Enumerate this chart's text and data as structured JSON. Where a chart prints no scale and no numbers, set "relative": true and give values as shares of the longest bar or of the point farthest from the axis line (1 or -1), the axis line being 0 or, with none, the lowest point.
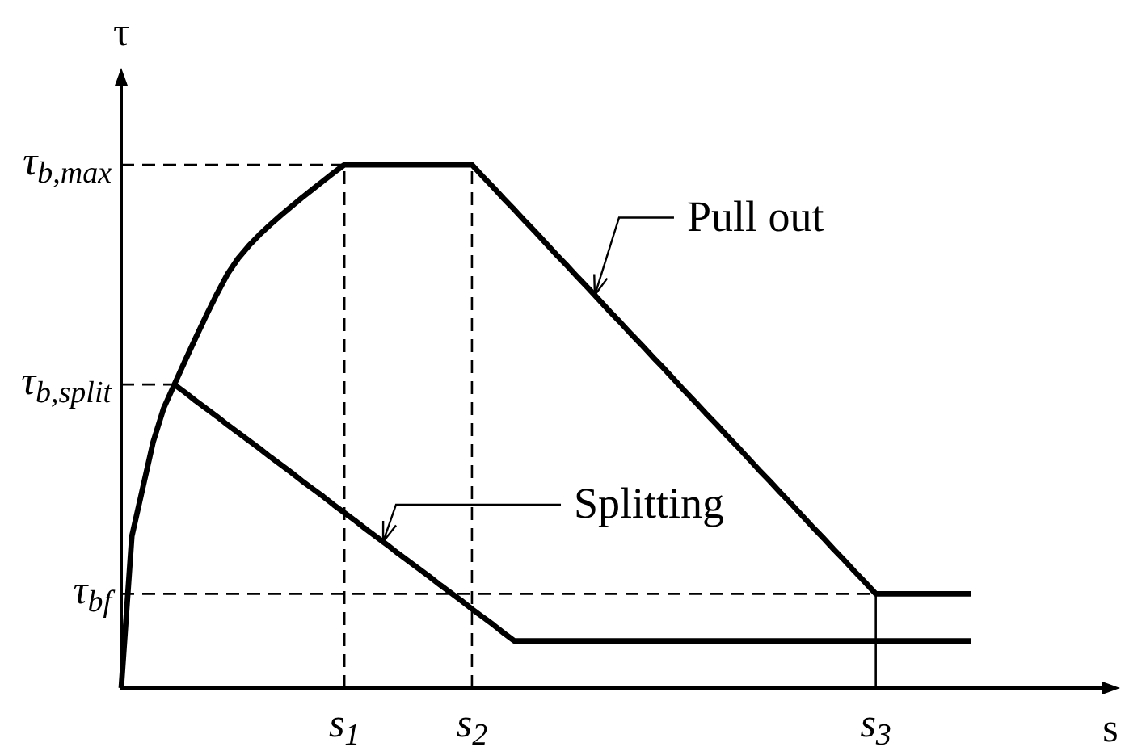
{
  "chart_data": {
    "type": "line",
    "relative": true,
    "xlabel": "s",
    "ylabel": "τ",
    "line_style": "solid",
    "categories": [
      null,
      null,
      null,
      null,
      null,
      null,
      null,
      null,
      null,
      null,
      null,
      null,
      null,
      null,
      null,
      null,
      null,
      null,
      null,
      null,
      null,
      "s$_{1}$",
      null,
      null,
      null,
      null,
      null,
      null,
      null,
      null,
      null,
      null,
      null,
      "s$_{2}$",
      null,
      null,
      null,
      null,
      null,
      null,
      null,
      null,
      null,
      null,
      null,
      null,
      null,
      null,
      null,
      null,
      null,
      null,
      null,
      null,
      null,
      null,
      null,
      null,
      null,
      null,
      null,
      null,
      null,
      null,
      null,
      null,
      null,
      null,
      null,
      null,
      null,
      "s$_{3}$",
      null,
      null,
      null,
      null,
      null,
      null,
      null,
      null,
      null
    ],
    "series": [
      {
        "name": "Pull out",
        "color": "#000000",
        "values": [
          0,
          0.29,
          0.38,
          0.47,
          0.535,
          0.58,
          0.625,
          0.669,
          0.712,
          0.753,
          0.791,
          0.821,
          0.845,
          0.866,
          0.885,
          0.903,
          0.92,
          0.937,
          0.953,
          0.969,
          0.985,
          1,
          1,
          1,
          1,
          1,
          1,
          1,
          1,
          1,
          1,
          1,
          1,
          1,
          0.978,
          0.957,
          0.935,
          0.914,
          0.892,
          0.871,
          0.849,
          0.827,
          0.806,
          0.784,
          0.763,
          0.741,
          0.719,
          0.698,
          0.676,
          0.655,
          0.633,
          0.612,
          0.59,
          0.568,
          0.547,
          0.525,
          0.504,
          0.482,
          0.461,
          0.439,
          0.417,
          0.396,
          0.374,
          0.353,
          0.331,
          0.309,
          0.288,
          0.266,
          0.245,
          0.223,
          0.202,
          0.18,
          0.18,
          0.18,
          0.18,
          0.18,
          0.18,
          0.18,
          0.18,
          0.18,
          0.18
        ]
      },
      {
        "name": "Splitting",
        "color": "#000000",
        "values": [
          null,
          null,
          null,
          null,
          null,
          0.58,
          0.565,
          0.549,
          0.534,
          0.519,
          0.503,
          0.488,
          0.473,
          0.458,
          0.442,
          0.427,
          0.412,
          0.396,
          0.381,
          0.366,
          0.35,
          0.335,
          0.32,
          0.304,
          0.289,
          0.274,
          0.258,
          0.243,
          0.228,
          0.213,
          0.197,
          0.182,
          0.167,
          0.151,
          0.136,
          0.121,
          0.105,
          0.09,
          0.09,
          0.09,
          0.09,
          0.09,
          0.09,
          0.09,
          0.09,
          0.09,
          0.09,
          0.09,
          0.09,
          0.09,
          0.09,
          0.09,
          0.09,
          0.09,
          0.09,
          0.09,
          0.09,
          0.09,
          0.09,
          0.09,
          0.09,
          0.09,
          0.09,
          0.09,
          0.09,
          0.09,
          0.09,
          0.09,
          0.09,
          0.09,
          0.09,
          0.09,
          0.09,
          0.09,
          0.09,
          0.09,
          0.09,
          0.09,
          0.09,
          0.09,
          0.09
        ]
      }
    ],
    "ref_lines": [
      {
        "axis": "y",
        "value": 1,
        "label": "τ$_{b,max}$",
        "line_style": "dashed"
      },
      {
        "axis": "y",
        "value": 0.58,
        "label": "τ$_{b,split}$",
        "line_style": "dashed"
      },
      {
        "axis": "y",
        "value": 0.18,
        "label": "τ$_{bf}$",
        "line_style": "dashed"
      },
      {
        "axis": "x",
        "value": "s$_{1}$",
        "line_style": "dashed"
      },
      {
        "axis": "x",
        "value": "s$_{2}$",
        "line_style": "dashed"
      },
      {
        "axis": "x",
        "value": "s$_{3}$",
        "line_style": "solid"
      }
    ]
  }
}
